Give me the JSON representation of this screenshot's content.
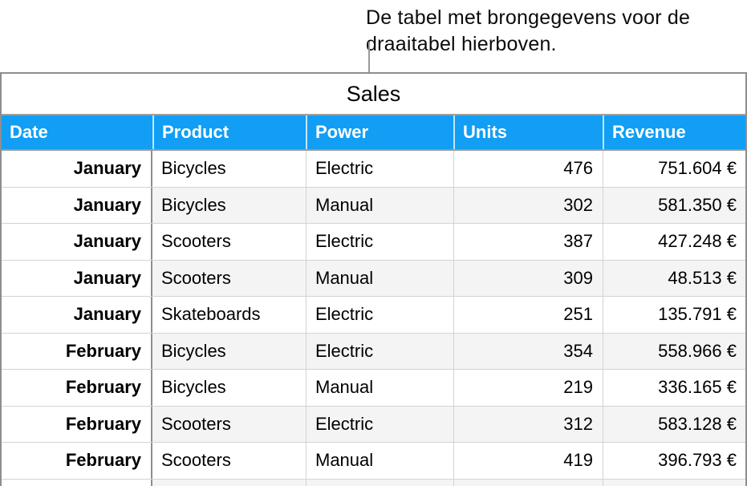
{
  "annotation": {
    "lines": [
      "De tabel met brongegevens voor de",
      "draaitabel hierboven."
    ],
    "full_text": "De tabel met brongegevens voor de draaitabel hierboven."
  },
  "table": {
    "title": "Sales",
    "columns": [
      "Date",
      "Product",
      "Power",
      "Units",
      "Revenue"
    ],
    "rows": [
      [
        "January",
        "Bicycles",
        "Electric",
        "476",
        "751.604 €"
      ],
      [
        "January",
        "Bicycles",
        "Manual",
        "302",
        "581.350 €"
      ],
      [
        "January",
        "Scooters",
        "Electric",
        "387",
        "427.248 €"
      ],
      [
        "January",
        "Scooters",
        "Manual",
        "309",
        "48.513 €"
      ],
      [
        "January",
        "Skateboards",
        "Electric",
        "251",
        "135.791 €"
      ],
      [
        "February",
        "Bicycles",
        "Electric",
        "354",
        "558.966 €"
      ],
      [
        "February",
        "Bicycles",
        "Manual",
        "219",
        "336.165 €"
      ],
      [
        "February",
        "Scooters",
        "Electric",
        "312",
        "583.128 €"
      ],
      [
        "February",
        "Scooters",
        "Manual",
        "419",
        "396.793 €"
      ]
    ],
    "colors": {
      "header_bg": "#119EF4",
      "header_text": "#FFFFFF",
      "alt_row_bg": "#F4F4F5",
      "grid_light": "#D3D3D3",
      "grid_dark": "#8E8E8E"
    }
  }
}
